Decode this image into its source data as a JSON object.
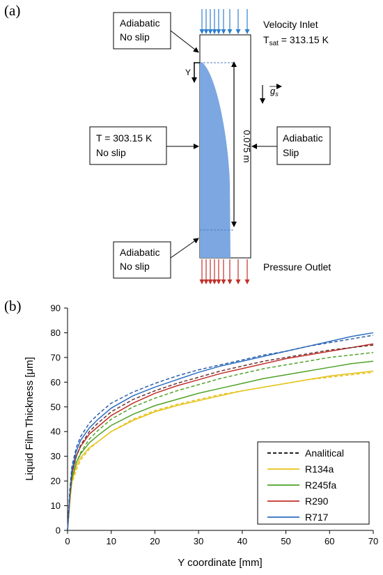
{
  "panel_a": {
    "label": "(a)",
    "boxes": {
      "top": [
        "Adiabatic",
        "No slip"
      ],
      "left": [
        "T = 303.15 K",
        "No slip"
      ],
      "right": [
        "Adiabatic",
        "Slip"
      ],
      "bottom": [
        "Adiabatic",
        "No slip"
      ]
    },
    "velocity_inlet": "Velocity Inlet",
    "tsat_prefix": "T",
    "tsat_sub": "sat",
    "tsat_value": " = 313.15 K",
    "pressure_outlet": "Pressure Outlet",
    "y_label": "Y",
    "length_label": "0.075 m",
    "gravity_label": "g",
    "gravity_sub": "s",
    "colors": {
      "film": "#7ca7e1",
      "inlet_arrows": "#2e7fcf",
      "outlet_arrows": "#c0302a"
    }
  },
  "panel_b": {
    "label": "(b)"
  },
  "chart_data": {
    "type": "line",
    "xlabel": "Y coordinate [mm]",
    "ylabel": "Liquid Film Thickness [μm]",
    "xlim": [
      0,
      70
    ],
    "ylim": [
      0,
      90
    ],
    "xticks": [
      "0",
      "10",
      "20",
      "30",
      "40",
      "50",
      "60",
      "70"
    ],
    "yticks": [
      "0",
      "10",
      "20",
      "30",
      "40",
      "50",
      "60",
      "70",
      "80",
      "90"
    ],
    "legend_position": "bottom-right",
    "grid": false,
    "x": [
      0.5,
      1,
      2,
      3,
      5,
      7,
      10,
      15,
      20,
      25,
      30,
      35,
      40,
      45,
      50,
      55,
      60,
      65,
      70
    ],
    "series": [
      {
        "name": "R134a",
        "color": "#e6c21a",
        "style": "solid",
        "values": [
          11,
          20,
          26,
          29.5,
          33.5,
          36,
          40,
          44.5,
          48,
          50.5,
          52.5,
          54.5,
          56.5,
          58,
          59.5,
          61,
          62.5,
          63.5,
          64.5
        ]
      },
      {
        "name": "R134a",
        "color": "#e6c21a",
        "style": "dashed",
        "analytical": true,
        "values": [
          12,
          19,
          24.5,
          28.5,
          33,
          36,
          40,
          45,
          48.5,
          51,
          53,
          55,
          56.5,
          58,
          59.5,
          61,
          62,
          63,
          64
        ]
      },
      {
        "name": "R245fa",
        "color": "#4fa327",
        "style": "solid",
        "values": [
          12,
          21,
          27.5,
          31,
          35.5,
          38.5,
          42.5,
          47,
          50.5,
          53,
          55.5,
          57.5,
          59.5,
          61.5,
          63,
          64.5,
          66,
          67.5,
          68.5
        ]
      },
      {
        "name": "R245fa",
        "color": "#4fa327",
        "style": "dashed",
        "analytical": true,
        "values": [
          13,
          21,
          27.5,
          31.5,
          37,
          40.5,
          45,
          50,
          53.5,
          56.5,
          59,
          61.5,
          63.5,
          65.5,
          67,
          68.5,
          70,
          71,
          72
        ]
      },
      {
        "name": "R290",
        "color": "#c0302a",
        "style": "solid",
        "values": [
          12,
          23,
          30,
          34,
          39,
          42,
          46.5,
          51.5,
          55.5,
          58.5,
          61,
          63.5,
          65.5,
          67.5,
          69.5,
          71,
          72.5,
          74,
          75.5
        ]
      },
      {
        "name": "R290",
        "color": "#6b3030",
        "style": "dashed",
        "analytical": true,
        "values": [
          14,
          23,
          30,
          34.5,
          40,
          43.5,
          48,
          53,
          56.5,
          59.5,
          62,
          64.5,
          66.5,
          68.5,
          70,
          71.5,
          73,
          74,
          75
        ]
      },
      {
        "name": "R717",
        "color": "#2e6fc1",
        "style": "solid",
        "values": [
          14,
          24.5,
          32,
          36.5,
          41.5,
          45,
          49.5,
          54.5,
          58,
          61,
          64,
          66.5,
          68.5,
          70.5,
          72.5,
          74.5,
          76.5,
          78.5,
          80
        ]
      },
      {
        "name": "R717",
        "color": "#2b5ea8",
        "style": "dashed",
        "analytical": true,
        "values": [
          16,
          26,
          33.5,
          38,
          43.5,
          47,
          51.5,
          56,
          59.5,
          62.5,
          65,
          67,
          69,
          71,
          72.5,
          74.5,
          76,
          77.5,
          79
        ]
      }
    ],
    "legend": [
      {
        "label": "Analitical",
        "color": "#000000",
        "style": "dashed"
      },
      {
        "label": "R134a",
        "color": "#e6c21a",
        "style": "solid"
      },
      {
        "label": "R245fa",
        "color": "#4fa327",
        "style": "solid"
      },
      {
        "label": "R290",
        "color": "#c0302a",
        "style": "solid"
      },
      {
        "label": "R717",
        "color": "#2e6fc1",
        "style": "solid"
      }
    ]
  }
}
